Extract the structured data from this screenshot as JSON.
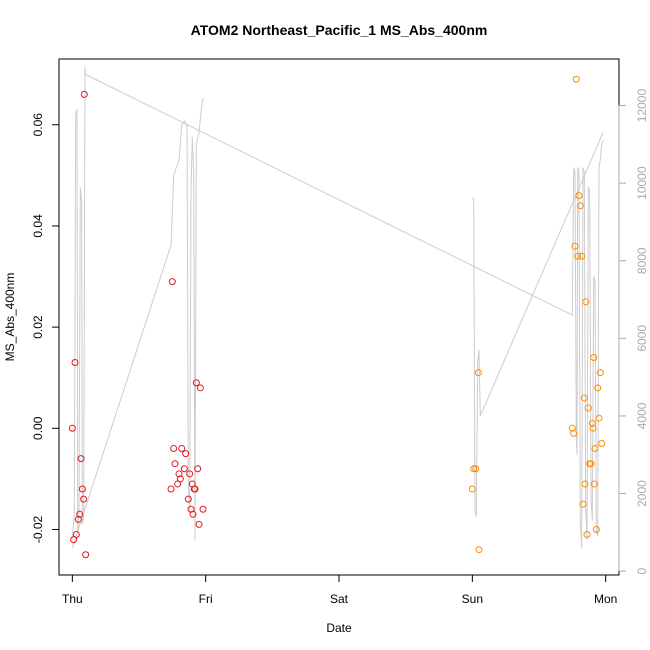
{
  "chart_data": {
    "type": "scatter",
    "title": "ATOM2 Northeast_Pacific_1 MS_Abs_400nm",
    "xlabel": "Date",
    "ylabel": "MS_Abs_400nm",
    "x_axis": {
      "unit": "days",
      "range": [
        -0.1,
        4.1
      ],
      "ticks": [
        {
          "value": 0,
          "label": "Thu"
        },
        {
          "value": 1,
          "label": "Fri"
        },
        {
          "value": 2,
          "label": "Sat"
        },
        {
          "value": 3,
          "label": "Sun"
        },
        {
          "value": 4,
          "label": "Mon"
        }
      ]
    },
    "y_axis": {
      "range": [
        -0.029,
        0.073
      ],
      "ticks": [
        -0.02,
        0.0,
        0.02,
        0.04,
        0.06
      ],
      "tick_labels": [
        "-0.02",
        "0.00",
        "0.02",
        "0.04",
        "0.06"
      ]
    },
    "y2_axis": {
      "color": "#aaaaaa",
      "range": [
        -100,
        13200
      ],
      "ticks": [
        0,
        2000,
        4000,
        6000,
        8000,
        10000,
        12000
      ],
      "tick_labels": [
        "0",
        "2000",
        "4000",
        "6000",
        "8000",
        "10000",
        "12000"
      ]
    },
    "grid": false,
    "series": [
      {
        "color": "#e41a1c",
        "marker": "open-circle",
        "points": [
          {
            "x": 0.0,
            "y": 0.0
          },
          {
            "x": 0.01,
            "y": -0.022
          },
          {
            "x": 0.02,
            "y": 0.013
          },
          {
            "x": 0.03,
            "y": -0.021
          },
          {
            "x": 0.045,
            "y": -0.018
          },
          {
            "x": 0.055,
            "y": -0.017
          },
          {
            "x": 0.065,
            "y": -0.006
          },
          {
            "x": 0.075,
            "y": -0.012
          },
          {
            "x": 0.085,
            "y": -0.014
          },
          {
            "x": 0.09,
            "y": 0.066
          },
          {
            "x": 0.1,
            "y": -0.025
          },
          {
            "x": 0.74,
            "y": -0.012
          },
          {
            "x": 0.75,
            "y": 0.029
          },
          {
            "x": 0.76,
            "y": -0.004
          },
          {
            "x": 0.77,
            "y": -0.007
          },
          {
            "x": 0.79,
            "y": -0.011
          },
          {
            "x": 0.8,
            "y": -0.009
          },
          {
            "x": 0.81,
            "y": -0.01
          },
          {
            "x": 0.82,
            "y": -0.004
          },
          {
            "x": 0.84,
            "y": -0.008
          },
          {
            "x": 0.85,
            "y": -0.005
          },
          {
            "x": 0.87,
            "y": -0.014
          },
          {
            "x": 0.88,
            "y": -0.009
          },
          {
            "x": 0.89,
            "y": -0.016
          },
          {
            "x": 0.9,
            "y": -0.011
          },
          {
            "x": 0.905,
            "y": -0.017
          },
          {
            "x": 0.915,
            "y": -0.012
          },
          {
            "x": 0.92,
            "y": -0.012
          },
          {
            "x": 0.93,
            "y": 0.009
          },
          {
            "x": 0.94,
            "y": -0.008
          },
          {
            "x": 0.95,
            "y": -0.019
          },
          {
            "x": 0.96,
            "y": 0.008
          },
          {
            "x": 0.98,
            "y": -0.016
          }
        ]
      },
      {
        "color": "#ff8c00",
        "marker": "open-circle",
        "points": [
          {
            "x": 3.0,
            "y": -0.012
          },
          {
            "x": 3.01,
            "y": -0.008
          },
          {
            "x": 3.025,
            "y": -0.008
          },
          {
            "x": 3.045,
            "y": 0.011
          },
          {
            "x": 3.05,
            "y": -0.024
          },
          {
            "x": 3.75,
            "y": 0.0
          },
          {
            "x": 3.76,
            "y": -0.001
          },
          {
            "x": 3.77,
            "y": 0.036
          },
          {
            "x": 3.78,
            "y": 0.069
          },
          {
            "x": 3.79,
            "y": 0.034
          },
          {
            "x": 3.8,
            "y": 0.046
          },
          {
            "x": 3.81,
            "y": 0.044
          },
          {
            "x": 3.82,
            "y": 0.034
          },
          {
            "x": 3.83,
            "y": -0.015
          },
          {
            "x": 3.84,
            "y": 0.006
          },
          {
            "x": 3.845,
            "y": -0.011
          },
          {
            "x": 3.85,
            "y": 0.025
          },
          {
            "x": 3.86,
            "y": -0.021
          },
          {
            "x": 3.87,
            "y": 0.004
          },
          {
            "x": 3.88,
            "y": -0.007
          },
          {
            "x": 3.89,
            "y": -0.007
          },
          {
            "x": 3.9,
            "y": 0.001
          },
          {
            "x": 3.905,
            "y": 0.0
          },
          {
            "x": 3.91,
            "y": 0.014
          },
          {
            "x": 3.915,
            "y": -0.011
          },
          {
            "x": 3.92,
            "y": -0.004
          },
          {
            "x": 3.93,
            "y": -0.02
          },
          {
            "x": 3.94,
            "y": 0.008
          },
          {
            "x": 3.95,
            "y": 0.002
          },
          {
            "x": 3.96,
            "y": 0.011
          },
          {
            "x": 3.97,
            "y": -0.003
          }
        ]
      },
      {
        "color": "#cccccc",
        "marker": "line",
        "axis": "right",
        "points": [
          {
            "x": 0.0,
            "y": 800
          },
          {
            "x": 0.015,
            "y": 1500
          },
          {
            "x": 0.025,
            "y": 11800
          },
          {
            "x": 0.035,
            "y": 11900
          },
          {
            "x": 0.04,
            "y": 1000
          },
          {
            "x": 0.05,
            "y": 1500
          },
          {
            "x": 0.06,
            "y": 9900
          },
          {
            "x": 0.07,
            "y": 9500
          },
          {
            "x": 0.075,
            "y": 1200
          },
          {
            "x": 0.085,
            "y": 1400
          },
          {
            "x": 0.095,
            "y": 13000
          },
          {
            "x": 0.1,
            "y": 12800
          },
          {
            "x": 3.75,
            "y": 6600
          },
          {
            "x": 3.76,
            "y": 10400
          },
          {
            "x": 3.77,
            "y": 10300
          },
          {
            "x": 3.78,
            "y": 3500
          },
          {
            "x": 3.785,
            "y": 3000
          },
          {
            "x": 3.79,
            "y": 10400
          },
          {
            "x": 3.8,
            "y": 10300
          },
          {
            "x": 3.81,
            "y": 1200
          },
          {
            "x": 3.82,
            "y": 600
          },
          {
            "x": 3.83,
            "y": 10400
          },
          {
            "x": 3.84,
            "y": 10300
          },
          {
            "x": 3.85,
            "y": 1600
          },
          {
            "x": 3.86,
            "y": 800
          },
          {
            "x": 3.87,
            "y": 9900
          },
          {
            "x": 3.88,
            "y": 9800
          },
          {
            "x": 3.89,
            "y": 1900
          },
          {
            "x": 3.9,
            "y": 1300
          },
          {
            "x": 3.91,
            "y": 7600
          },
          {
            "x": 3.92,
            "y": 7500
          },
          {
            "x": 3.93,
            "y": 1000
          },
          {
            "x": 3.94,
            "y": 900
          },
          {
            "x": 3.95,
            "y": 10400
          },
          {
            "x": 3.96,
            "y": 10600
          },
          {
            "x": 3.97,
            "y": 11000
          },
          {
            "x": 3.98,
            "y": 11100
          }
        ]
      },
      {
        "color": "#cccccc",
        "marker": "line",
        "axis": "right",
        "points": [
          {
            "x": 0.0,
            "y": 600
          },
          {
            "x": 0.74,
            "y": 8400
          },
          {
            "x": 0.76,
            "y": 10200
          },
          {
            "x": 0.78,
            "y": 10400
          },
          {
            "x": 0.8,
            "y": 10600
          },
          {
            "x": 0.82,
            "y": 11500
          },
          {
            "x": 0.84,
            "y": 11600
          },
          {
            "x": 0.86,
            "y": 11500
          },
          {
            "x": 0.87,
            "y": 2200
          },
          {
            "x": 0.88,
            "y": 1500
          },
          {
            "x": 0.89,
            "y": 9800
          },
          {
            "x": 0.9,
            "y": 11200
          },
          {
            "x": 0.91,
            "y": 10200
          },
          {
            "x": 0.92,
            "y": 800
          },
          {
            "x": 0.93,
            "y": 11000
          },
          {
            "x": 0.95,
            "y": 11300
          },
          {
            "x": 0.97,
            "y": 12000
          },
          {
            "x": 0.98,
            "y": 12200
          }
        ]
      },
      {
        "color": "#cccccc",
        "marker": "line",
        "axis": "right",
        "points": [
          {
            "x": 3.0,
            "y": 9600
          },
          {
            "x": 3.01,
            "y": 9600
          },
          {
            "x": 3.02,
            "y": 1500
          },
          {
            "x": 3.03,
            "y": 1400
          },
          {
            "x": 3.04,
            "y": 5400
          },
          {
            "x": 3.05,
            "y": 5700
          },
          {
            "x": 3.06,
            "y": 4000
          },
          {
            "x": 3.98,
            "y": 11300
          }
        ]
      }
    ]
  }
}
